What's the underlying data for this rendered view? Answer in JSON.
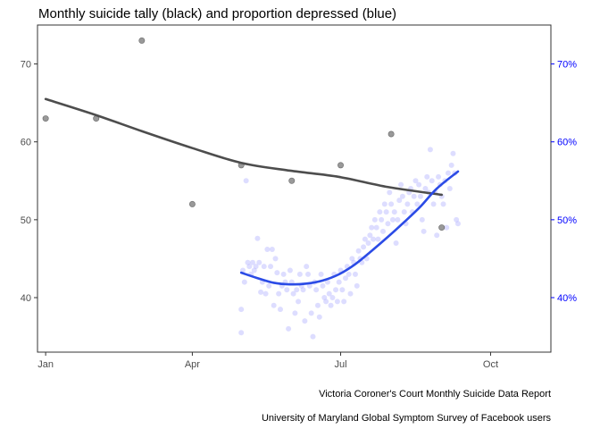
{
  "chart_data": {
    "type": "scatter",
    "title": "Monthly suicide tally (black) and proportion depressed (blue)",
    "captions": [
      "Victoria Coroner's Court Monthly Suicide Data Report",
      "University of Maryland Global Symptom Survey of Facebook users"
    ],
    "x_axis": {
      "min_day": -5,
      "max_day": 310,
      "ticks": [
        {
          "day": 0,
          "label": "Jan"
        },
        {
          "day": 90,
          "label": "Apr"
        },
        {
          "day": 181,
          "label": "Jul"
        },
        {
          "day": 273,
          "label": "Oct"
        }
      ]
    },
    "y_left": {
      "range": [
        33,
        75
      ],
      "ticks": [
        40,
        50,
        60,
        70
      ],
      "label": ""
    },
    "y_right": {
      "range": [
        0.33,
        0.75
      ],
      "ticks": [
        0.4,
        0.5,
        0.6,
        0.7
      ],
      "tick_labels": [
        "40%",
        "50%",
        "60%",
        "70%"
      ],
      "label": ""
    },
    "colors": {
      "suicide_points": "#333333",
      "suicide_smooth": "#4d4d4d",
      "depressed_points": "#b3b3ff",
      "depressed_smooth": "#2b4be6",
      "right_axis": "#0000ff"
    },
    "series": [
      {
        "name": "Monthly suicide tally",
        "axis": "left",
        "points": [
          {
            "day": 0,
            "value": 63
          },
          {
            "day": 31,
            "value": 63
          },
          {
            "day": 59,
            "value": 73
          },
          {
            "day": 90,
            "value": 52
          },
          {
            "day": 120,
            "value": 57
          },
          {
            "day": 151,
            "value": 55
          },
          {
            "day": 181,
            "value": 57
          },
          {
            "day": 212,
            "value": 61
          },
          {
            "day": 243,
            "value": 49
          }
        ],
        "smooth": [
          {
            "day": 0,
            "value": 65.5
          },
          {
            "day": 30,
            "value": 63.5
          },
          {
            "day": 60,
            "value": 61.3
          },
          {
            "day": 90,
            "value": 59.2
          },
          {
            "day": 120,
            "value": 57.3
          },
          {
            "day": 150,
            "value": 56.3
          },
          {
            "day": 180,
            "value": 55.5
          },
          {
            "day": 210,
            "value": 54.2
          },
          {
            "day": 243,
            "value": 53.2
          }
        ]
      },
      {
        "name": "Proportion depressed",
        "axis": "right",
        "points": [
          {
            "day": 120,
            "value": 0.385
          },
          {
            "day": 120,
            "value": 0.355
          },
          {
            "day": 121,
            "value": 0.435
          },
          {
            "day": 122,
            "value": 0.42
          },
          {
            "day": 123,
            "value": 0.55
          },
          {
            "day": 124,
            "value": 0.445
          },
          {
            "day": 125,
            "value": 0.44
          },
          {
            "day": 126,
            "value": 0.43
          },
          {
            "day": 127,
            "value": 0.445
          },
          {
            "day": 128,
            "value": 0.435
          },
          {
            "day": 129,
            "value": 0.44
          },
          {
            "day": 130,
            "value": 0.476
          },
          {
            "day": 131,
            "value": 0.445
          },
          {
            "day": 132,
            "value": 0.407
          },
          {
            "day": 133,
            "value": 0.42
          },
          {
            "day": 134,
            "value": 0.44
          },
          {
            "day": 135,
            "value": 0.405
          },
          {
            "day": 136,
            "value": 0.462
          },
          {
            "day": 137,
            "value": 0.415
          },
          {
            "day": 138,
            "value": 0.44
          },
          {
            "day": 139,
            "value": 0.462
          },
          {
            "day": 140,
            "value": 0.39
          },
          {
            "day": 141,
            "value": 0.45
          },
          {
            "day": 142,
            "value": 0.432
          },
          {
            "day": 143,
            "value": 0.405
          },
          {
            "day": 144,
            "value": 0.385
          },
          {
            "day": 145,
            "value": 0.415
          },
          {
            "day": 146,
            "value": 0.43
          },
          {
            "day": 147,
            "value": 0.42
          },
          {
            "day": 148,
            "value": 0.41
          },
          {
            "day": 149,
            "value": 0.36
          },
          {
            "day": 150,
            "value": 0.435
          },
          {
            "day": 151,
            "value": 0.42
          },
          {
            "day": 152,
            "value": 0.405
          },
          {
            "day": 153,
            "value": 0.38
          },
          {
            "day": 154,
            "value": 0.41
          },
          {
            "day": 155,
            "value": 0.395
          },
          {
            "day": 156,
            "value": 0.43
          },
          {
            "day": 157,
            "value": 0.415
          },
          {
            "day": 158,
            "value": 0.41
          },
          {
            "day": 159,
            "value": 0.37
          },
          {
            "day": 160,
            "value": 0.44
          },
          {
            "day": 161,
            "value": 0.43
          },
          {
            "day": 162,
            "value": 0.415
          },
          {
            "day": 163,
            "value": 0.38
          },
          {
            "day": 164,
            "value": 0.35
          },
          {
            "day": 165,
            "value": 0.42
          },
          {
            "day": 166,
            "value": 0.41
          },
          {
            "day": 167,
            "value": 0.39
          },
          {
            "day": 168,
            "value": 0.375
          },
          {
            "day": 169,
            "value": 0.43
          },
          {
            "day": 170,
            "value": 0.415
          },
          {
            "day": 171,
            "value": 0.4
          },
          {
            "day": 172,
            "value": 0.395
          },
          {
            "day": 173,
            "value": 0.42
          },
          {
            "day": 174,
            "value": 0.405
          },
          {
            "day": 175,
            "value": 0.39
          },
          {
            "day": 176,
            "value": 0.4
          },
          {
            "day": 177,
            "value": 0.43
          },
          {
            "day": 178,
            "value": 0.41
          },
          {
            "day": 179,
            "value": 0.395
          },
          {
            "day": 180,
            "value": 0.42
          },
          {
            "day": 181,
            "value": 0.435
          },
          {
            "day": 182,
            "value": 0.41
          },
          {
            "day": 183,
            "value": 0.395
          },
          {
            "day": 184,
            "value": 0.425
          },
          {
            "day": 185,
            "value": 0.44
          },
          {
            "day": 186,
            "value": 0.43
          },
          {
            "day": 187,
            "value": 0.405
          },
          {
            "day": 188,
            "value": 0.45
          },
          {
            "day": 189,
            "value": 0.445
          },
          {
            "day": 190,
            "value": 0.43
          },
          {
            "day": 191,
            "value": 0.415
          },
          {
            "day": 192,
            "value": 0.46
          },
          {
            "day": 193,
            "value": 0.45
          },
          {
            "day": 194,
            "value": 0.445
          },
          {
            "day": 195,
            "value": 0.465
          },
          {
            "day": 196,
            "value": 0.475
          },
          {
            "day": 197,
            "value": 0.45
          },
          {
            "day": 198,
            "value": 0.47
          },
          {
            "day": 199,
            "value": 0.48
          },
          {
            "day": 200,
            "value": 0.49
          },
          {
            "day": 201,
            "value": 0.475
          },
          {
            "day": 202,
            "value": 0.5
          },
          {
            "day": 203,
            "value": 0.49
          },
          {
            "day": 204,
            "value": 0.475
          },
          {
            "day": 205,
            "value": 0.51
          },
          {
            "day": 206,
            "value": 0.5
          },
          {
            "day": 207,
            "value": 0.485
          },
          {
            "day": 208,
            "value": 0.52
          },
          {
            "day": 209,
            "value": 0.51
          },
          {
            "day": 210,
            "value": 0.495
          },
          {
            "day": 211,
            "value": 0.535
          },
          {
            "day": 212,
            "value": 0.52
          },
          {
            "day": 213,
            "value": 0.5
          },
          {
            "day": 214,
            "value": 0.51
          },
          {
            "day": 215,
            "value": 0.47
          },
          {
            "day": 216,
            "value": 0.5
          },
          {
            "day": 217,
            "value": 0.525
          },
          {
            "day": 218,
            "value": 0.545
          },
          {
            "day": 219,
            "value": 0.53
          },
          {
            "day": 220,
            "value": 0.51
          },
          {
            "day": 221,
            "value": 0.495
          },
          {
            "day": 222,
            "value": 0.52
          },
          {
            "day": 223,
            "value": 0.535
          },
          {
            "day": 224,
            "value": 0.54
          },
          {
            "day": 225,
            "value": 0.51
          },
          {
            "day": 226,
            "value": 0.53
          },
          {
            "day": 227,
            "value": 0.55
          },
          {
            "day": 228,
            "value": 0.52
          },
          {
            "day": 229,
            "value": 0.545
          },
          {
            "day": 230,
            "value": 0.53
          },
          {
            "day": 231,
            "value": 0.5
          },
          {
            "day": 232,
            "value": 0.485
          },
          {
            "day": 233,
            "value": 0.54
          },
          {
            "day": 234,
            "value": 0.555
          },
          {
            "day": 235,
            "value": 0.535
          },
          {
            "day": 236,
            "value": 0.59
          },
          {
            "day": 237,
            "value": 0.55
          },
          {
            "day": 238,
            "value": 0.52
          },
          {
            "day": 239,
            "value": 0.535
          },
          {
            "day": 240,
            "value": 0.48
          },
          {
            "day": 241,
            "value": 0.555
          },
          {
            "day": 242,
            "value": 0.545
          },
          {
            "day": 243,
            "value": 0.53
          },
          {
            "day": 244,
            "value": 0.52
          },
          {
            "day": 245,
            "value": 0.55
          },
          {
            "day": 246,
            "value": 0.49
          },
          {
            "day": 247,
            "value": 0.56
          },
          {
            "day": 248,
            "value": 0.54
          },
          {
            "day": 249,
            "value": 0.57
          },
          {
            "day": 250,
            "value": 0.585
          },
          {
            "day": 251,
            "value": 0.56
          },
          {
            "day": 252,
            "value": 0.5
          },
          {
            "day": 253,
            "value": 0.495
          }
        ],
        "smooth": [
          {
            "day": 120,
            "value": 0.432
          },
          {
            "day": 130,
            "value": 0.425
          },
          {
            "day": 140,
            "value": 0.419
          },
          {
            "day": 150,
            "value": 0.417
          },
          {
            "day": 160,
            "value": 0.418
          },
          {
            "day": 170,
            "value": 0.422
          },
          {
            "day": 180,
            "value": 0.43
          },
          {
            "day": 190,
            "value": 0.443
          },
          {
            "day": 200,
            "value": 0.46
          },
          {
            "day": 210,
            "value": 0.478
          },
          {
            "day": 220,
            "value": 0.497
          },
          {
            "day": 230,
            "value": 0.517
          },
          {
            "day": 240,
            "value": 0.54
          },
          {
            "day": 253,
            "value": 0.562
          }
        ]
      }
    ]
  }
}
